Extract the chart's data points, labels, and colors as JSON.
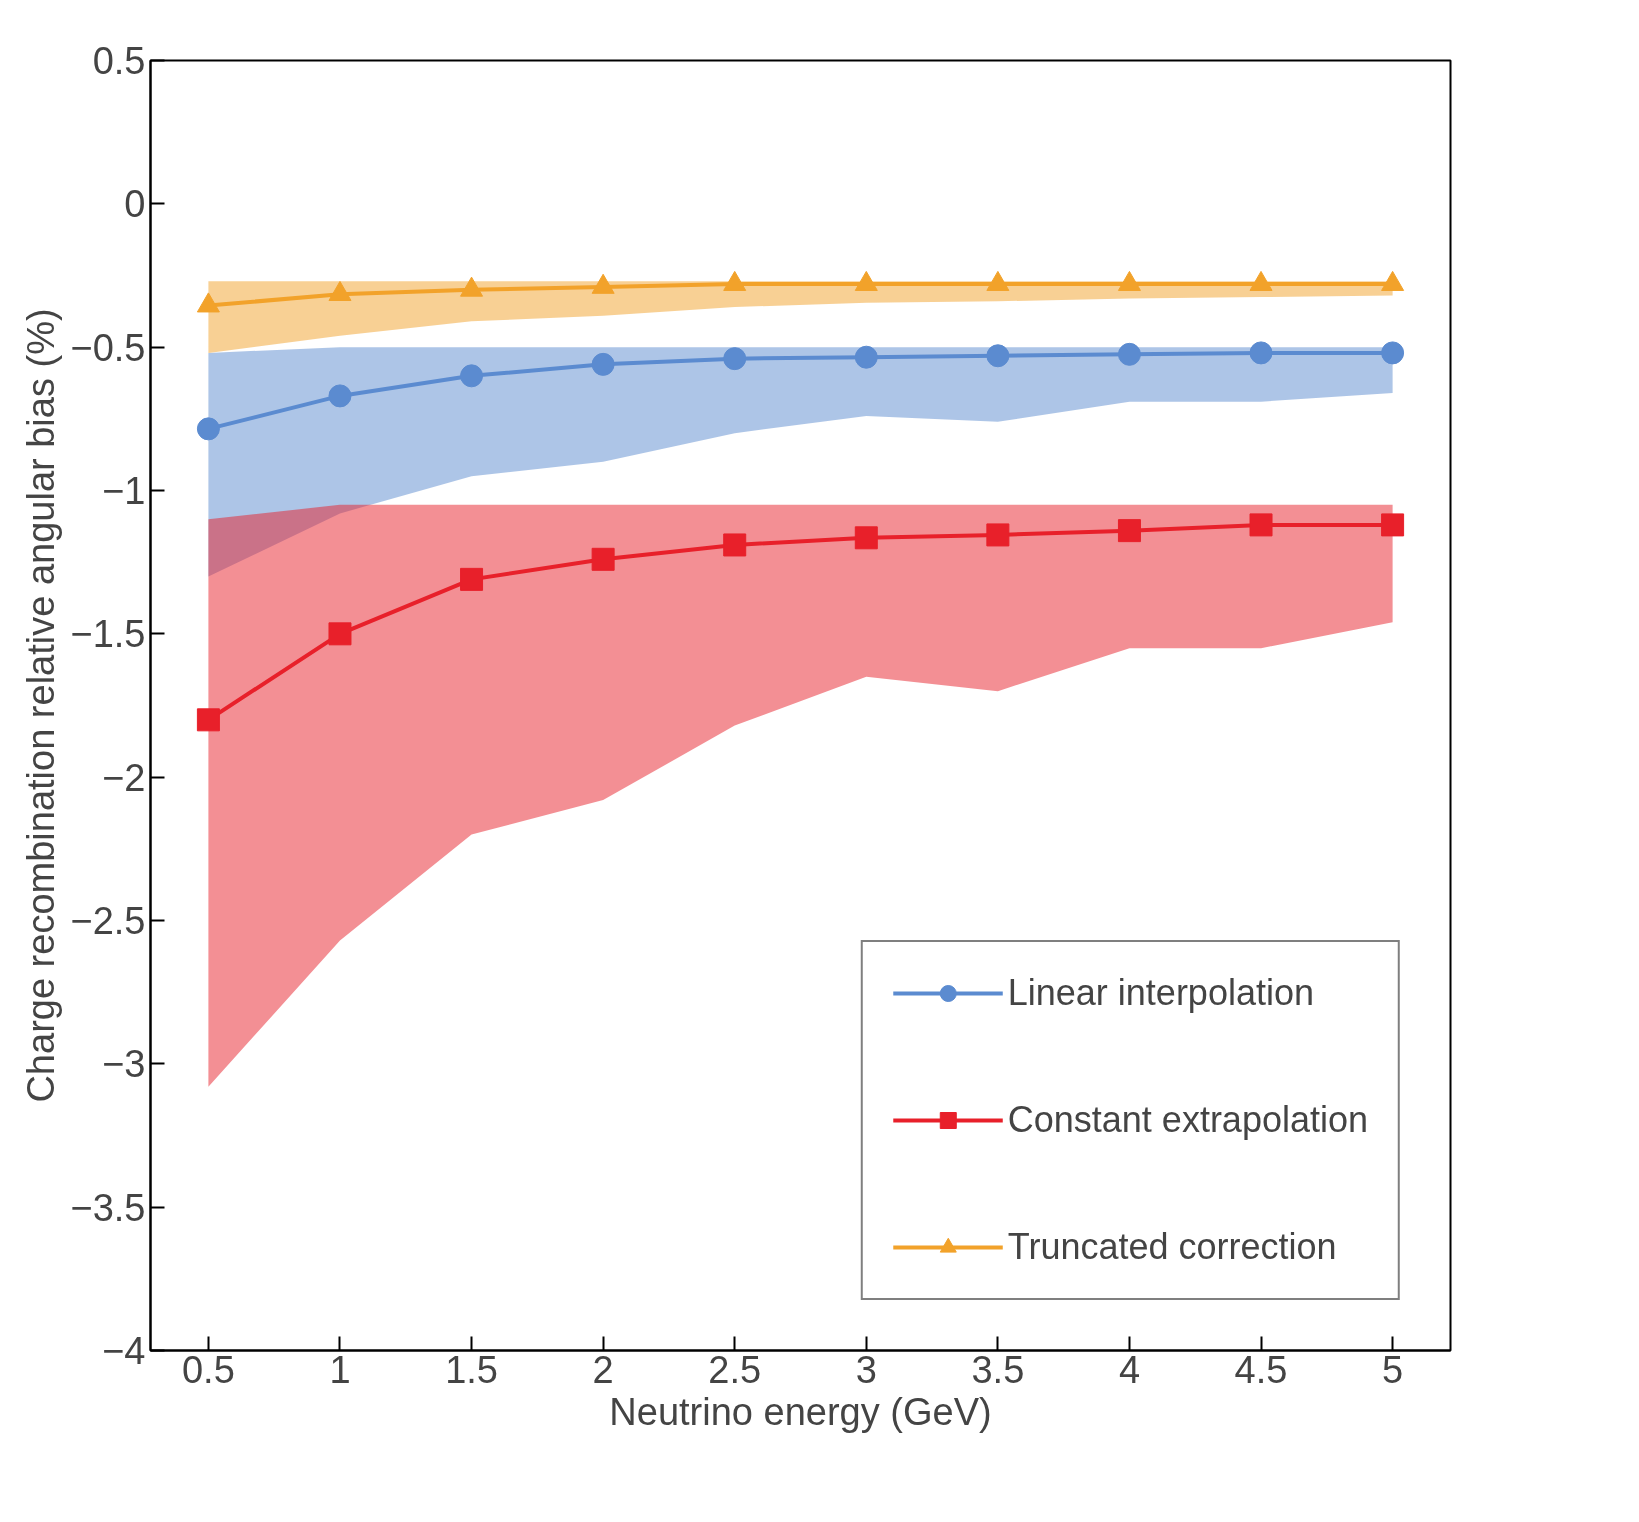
{
  "chart_data": {
    "type": "line",
    "xlabel": "Neutrino energy (GeV)",
    "ylabel": "Charge recombination relative angular bias (%)",
    "x": [
      0.5,
      1,
      1.5,
      2,
      2.5,
      3,
      3.5,
      4,
      4.5,
      5
    ],
    "xlim": [
      0.28,
      5.22
    ],
    "xticks": [
      0.5,
      1,
      1.5,
      2,
      2.5,
      3,
      3.5,
      4,
      4.5,
      5
    ],
    "ylim": [
      -4,
      0.5
    ],
    "yticks": [
      {
        "value": -4,
        "label": "−4"
      },
      {
        "value": -3.5,
        "label": "−3.5"
      },
      {
        "value": -3,
        "label": "−3"
      },
      {
        "value": -2.5,
        "label": "−2.5"
      },
      {
        "value": -2,
        "label": "−2"
      },
      {
        "value": -1.5,
        "label": "−1.5"
      },
      {
        "value": -1,
        "label": "−1"
      },
      {
        "value": -0.5,
        "label": "−0.5"
      },
      0,
      0.5
    ],
    "grid": false,
    "legend": "bottom right",
    "series": [
      {
        "name": "Linear interpolation",
        "color": "#5b8bd0",
        "marker": "circle",
        "values": [
          -0.785,
          -0.67,
          -0.6,
          -0.56,
          -0.54,
          -0.535,
          -0.53,
          -0.525,
          -0.52,
          -0.52
        ],
        "lower": [
          -1.3,
          -1.08,
          -0.95,
          -0.9,
          -0.8,
          -0.74,
          -0.76,
          -0.69,
          -0.69,
          -0.66
        ],
        "upper": [
          -0.52,
          -0.5,
          -0.5,
          -0.5,
          -0.5,
          -0.5,
          -0.5,
          -0.5,
          -0.5,
          -0.5
        ]
      },
      {
        "name": "Constant extrapolation",
        "color": "#e8202a",
        "marker": "square",
        "values": [
          -1.8,
          -1.5,
          -1.31,
          -1.24,
          -1.19,
          -1.165,
          -1.155,
          -1.14,
          -1.12,
          -1.12
        ],
        "lower": [
          -3.08,
          -2.57,
          -2.2,
          -2.08,
          -1.82,
          -1.65,
          -1.7,
          -1.55,
          -1.55,
          -1.46
        ],
        "upper": [
          -1.1,
          -1.05,
          -1.05,
          -1.05,
          -1.05,
          -1.05,
          -1.05,
          -1.05,
          -1.05,
          -1.05
        ]
      },
      {
        "name": "Truncated correction",
        "color": "#f2a22a",
        "marker": "triangle",
        "values": [
          -0.355,
          -0.315,
          -0.3,
          -0.29,
          -0.28,
          -0.28,
          -0.28,
          -0.28,
          -0.28,
          -0.28
        ],
        "lower": [
          -0.52,
          -0.46,
          -0.41,
          -0.39,
          -0.36,
          -0.345,
          -0.34,
          -0.33,
          -0.325,
          -0.32
        ],
        "upper": [
          -0.27,
          -0.27,
          -0.27,
          -0.27,
          -0.27,
          -0.27,
          -0.27,
          -0.27,
          -0.27,
          -0.27
        ]
      }
    ]
  }
}
